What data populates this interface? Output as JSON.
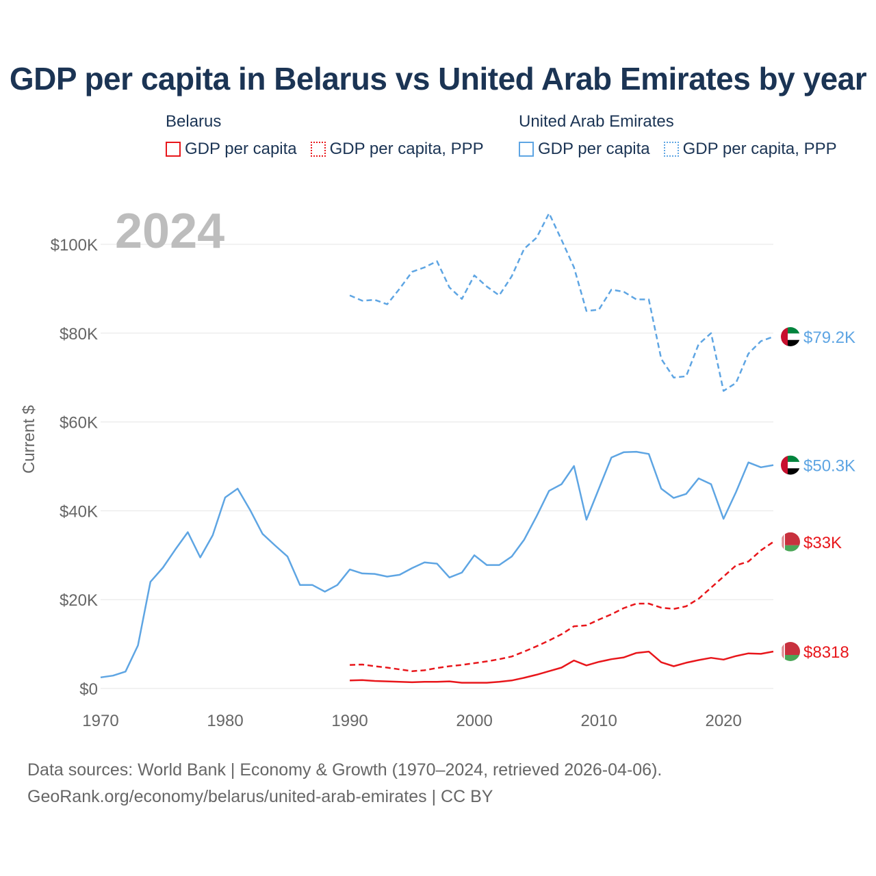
{
  "title": "GDP per capita in Belarus vs United Arab Emirates by year",
  "legend": {
    "belarus": {
      "country": "Belarus",
      "gdp": "GDP per capita",
      "ppp": "GDP per capita, PPP"
    },
    "uae": {
      "country": "United Arab Emirates",
      "gdp": "GDP per capita",
      "ppp": "GDP per capita, PPP"
    }
  },
  "colors": {
    "belarus": "#e8161b",
    "uae": "#5ea5e3",
    "title": "#1b3454",
    "year": "#bdbdbd",
    "axis_text": "#666666",
    "grid": "#e5e5e5"
  },
  "footer": {
    "line1": "Data sources: World Bank | Economy & Growth (1970–2024, retrieved 2026-04-06).",
    "line2": "GeoRank.org/economy/belarus/united-arab-emirates | CC BY"
  },
  "chart_data": {
    "type": "line",
    "title": "GDP per capita in Belarus vs United Arab Emirates by year",
    "year_label": "2024",
    "ylabel": "Current $",
    "xlabel": "",
    "xlim": [
      1970,
      2024
    ],
    "ylim": [
      0,
      110000
    ],
    "x_ticks": [
      1970,
      1980,
      1990,
      2000,
      2010,
      2020
    ],
    "y_ticks": [
      0,
      20000,
      40000,
      60000,
      80000,
      100000
    ],
    "y_tick_labels": [
      "$0",
      "$20K",
      "$40K",
      "$60K",
      "$80K",
      "$100K"
    ],
    "series": [
      {
        "name": "United Arab Emirates GDP per capita, PPP",
        "country": "uae",
        "dashed": true,
        "end_label": "$79.2K",
        "x": [
          1990,
          1991,
          1992,
          1993,
          1994,
          1995,
          1996,
          1997,
          1998,
          1999,
          2000,
          2001,
          2002,
          2003,
          2004,
          2005,
          2006,
          2007,
          2008,
          2009,
          2010,
          2011,
          2012,
          2013,
          2014,
          2015,
          2016,
          2017,
          2018,
          2019,
          2020,
          2021,
          2022,
          2023,
          2024
        ],
        "values": [
          88500,
          87300,
          87500,
          86500,
          90000,
          93800,
          94800,
          96200,
          90300,
          87700,
          93000,
          90500,
          88500,
          92800,
          99000,
          101500,
          107000,
          101000,
          94800,
          85000,
          85300,
          89800,
          89300,
          87600,
          87600,
          74200,
          70000,
          70300,
          77500,
          80000,
          67000,
          68800,
          75400,
          78200,
          79200
        ]
      },
      {
        "name": "United Arab Emirates GDP per capita",
        "country": "uae",
        "dashed": false,
        "end_label": "$50.3K",
        "x": [
          1970,
          1971,
          1972,
          1973,
          1974,
          1975,
          1976,
          1977,
          1978,
          1979,
          1980,
          1981,
          1982,
          1983,
          1984,
          1985,
          1986,
          1987,
          1988,
          1989,
          1990,
          1991,
          1992,
          1993,
          1994,
          1995,
          1996,
          1997,
          1998,
          1999,
          2000,
          2001,
          2002,
          2003,
          2004,
          2005,
          2006,
          2007,
          2008,
          2009,
          2010,
          2011,
          2012,
          2013,
          2014,
          2015,
          2016,
          2017,
          2018,
          2019,
          2020,
          2021,
          2022,
          2023,
          2024
        ],
        "values": [
          2500,
          2900,
          3800,
          9700,
          24000,
          27200,
          31300,
          35200,
          29500,
          34500,
          43000,
          45000,
          40200,
          34800,
          32200,
          29700,
          23300,
          23300,
          21800,
          23300,
          26800,
          25900,
          25800,
          25200,
          25600,
          27100,
          28400,
          28100,
          25000,
          26100,
          30000,
          27800,
          27800,
          29700,
          33500,
          38800,
          44500,
          46000,
          50100,
          38000,
          45000,
          52000,
          53200,
          53300,
          52800,
          45000,
          42900,
          43800,
          47300,
          46000,
          38200,
          44200,
          50900,
          49800,
          50300
        ]
      },
      {
        "name": "Belarus GDP per capita, PPP",
        "country": "belarus",
        "dashed": true,
        "end_label": "$33K",
        "x": [
          1990,
          1991,
          1992,
          1993,
          1994,
          1995,
          1996,
          1997,
          1998,
          1999,
          2000,
          2001,
          2002,
          2003,
          2004,
          2005,
          2006,
          2007,
          2008,
          2009,
          2010,
          2011,
          2012,
          2013,
          2014,
          2015,
          2016,
          2017,
          2018,
          2019,
          2020,
          2021,
          2022,
          2023,
          2024
        ],
        "values": [
          5300,
          5400,
          5000,
          4700,
          4300,
          3900,
          4100,
          4600,
          5000,
          5300,
          5700,
          6100,
          6600,
          7200,
          8300,
          9500,
          10800,
          12200,
          14000,
          14200,
          15500,
          16700,
          18100,
          19100,
          19100,
          18200,
          17900,
          18500,
          20200,
          22700,
          25200,
          27700,
          28600,
          31100,
          33000
        ]
      },
      {
        "name": "Belarus GDP per capita",
        "country": "belarus",
        "dashed": false,
        "end_label": "$8318",
        "x": [
          1990,
          1991,
          1992,
          1993,
          1994,
          1995,
          1996,
          1997,
          1998,
          1999,
          2000,
          2001,
          2002,
          2003,
          2004,
          2005,
          2006,
          2007,
          2008,
          2009,
          2010,
          2011,
          2012,
          2013,
          2014,
          2015,
          2016,
          2017,
          2018,
          2019,
          2020,
          2021,
          2022,
          2023,
          2024
        ],
        "values": [
          1800,
          1900,
          1700,
          1600,
          1500,
          1400,
          1500,
          1500,
          1600,
          1300,
          1300,
          1300,
          1500,
          1800,
          2400,
          3100,
          3900,
          4700,
          6300,
          5200,
          6000,
          6600,
          7000,
          8000,
          8300,
          5900,
          5000,
          5800,
          6400,
          6900,
          6500,
          7300,
          7900,
          7800,
          8318
        ]
      }
    ]
  }
}
